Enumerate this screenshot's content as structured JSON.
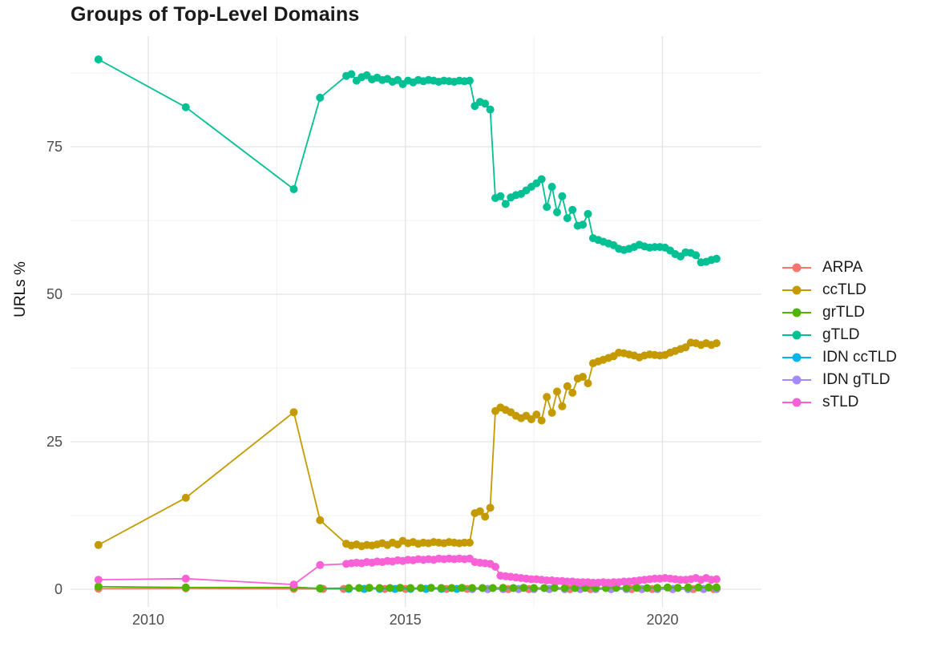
{
  "plot_style": {
    "background": "#ffffff",
    "grid_major_color": "#e3e3e3",
    "grid_minor_color": "#f0f0f0",
    "tick_label_color": "#4d4d4d",
    "title_color": "#1a1a1a"
  },
  "legend": {
    "items": [
      {
        "id": "arpa",
        "label": "ARPA",
        "color": "#F8766D"
      },
      {
        "id": "cctld",
        "label": "ccTLD",
        "color": "#C49A00"
      },
      {
        "id": "grtld",
        "label": "grTLD",
        "color": "#53B400"
      },
      {
        "id": "gtld",
        "label": "gTLD",
        "color": "#00C094"
      },
      {
        "id": "idn-cctld",
        "label": "IDN ccTLD",
        "color": "#00B6EB"
      },
      {
        "id": "idn-gtld",
        "label": "IDN gTLD",
        "color": "#A58AFF"
      },
      {
        "id": "stld",
        "label": "sTLD",
        "color": "#FB61D7"
      }
    ]
  },
  "chart_data": {
    "type": "line",
    "title": "Groups of Top-Level Domains",
    "xlabel": "",
    "ylabel": "URLs %",
    "xlim": [
      2008.5,
      2021.9
    ],
    "ylim": [
      -3,
      93.7
    ],
    "x_ticks": [
      2010,
      2015,
      2020
    ],
    "x_tick_labels": [
      "2010",
      "2015",
      "2020"
    ],
    "x_minor": [
      2012.5,
      2017.5
    ],
    "y_ticks": [
      0,
      25,
      50,
      75
    ],
    "y_tick_labels": [
      "0",
      "25",
      "50",
      "75"
    ],
    "y_minor": [
      12.5,
      37.5,
      62.5,
      87.5
    ],
    "grid": true,
    "legend_position": "right",
    "marker": "point",
    "draw_order": [
      "arpa",
      "idn-cctld",
      "idn-gtld",
      "grtld",
      "gtld",
      "cctld",
      "stld"
    ],
    "series": [
      {
        "id": "arpa",
        "name": "ARPA",
        "color": "#F8766D",
        "x": [
          2009.03,
          2010.73,
          2012.83,
          2013.4,
          2013.8,
          2014.2,
          2014.6,
          2015.0,
          2015.4,
          2015.8,
          2016.2,
          2016.6,
          2017.0,
          2017.4,
          2017.8,
          2018.2,
          2018.6,
          2019.0,
          2019.4,
          2019.8,
          2020.2,
          2020.6,
          2021.0
        ],
        "y": [
          0.1,
          0.15,
          0.07,
          0.05,
          0.05,
          0.05,
          0.05,
          0.05,
          0.05,
          0.05,
          0.05,
          0.03,
          0.03,
          0.03,
          0.03,
          0.03,
          0.03,
          0.03,
          0.03,
          0.03,
          0.03,
          0.03,
          0.03
        ]
      },
      {
        "id": "cctld",
        "name": "ccTLD",
        "color": "#C49A00",
        "x": [
          2009.03,
          2010.73,
          2012.83,
          2013.34,
          2013.85,
          2013.95,
          2014.05,
          2014.15,
          2014.25,
          2014.35,
          2014.45,
          2014.55,
          2014.65,
          2014.75,
          2014.85,
          2014.95,
          2015.05,
          2015.15,
          2015.25,
          2015.35,
          2015.45,
          2015.55,
          2015.65,
          2015.75,
          2015.85,
          2015.95,
          2016.05,
          2016.15,
          2016.25,
          2016.35,
          2016.45,
          2016.55,
          2016.65,
          2016.75,
          2016.85,
          2016.95,
          2017.05,
          2017.15,
          2017.25,
          2017.35,
          2017.45,
          2017.55,
          2017.65,
          2017.75,
          2017.85,
          2017.95,
          2018.05,
          2018.15,
          2018.25,
          2018.35,
          2018.45,
          2018.55,
          2018.65,
          2018.75,
          2018.85,
          2018.95,
          2019.05,
          2019.15,
          2019.25,
          2019.35,
          2019.45,
          2019.55,
          2019.65,
          2019.75,
          2019.85,
          2019.95,
          2020.05,
          2020.15,
          2020.25,
          2020.35,
          2020.45,
          2020.55,
          2020.65,
          2020.75,
          2020.85,
          2020.95,
          2021.05
        ],
        "y": [
          7.5,
          15.5,
          30.0,
          11.7,
          7.7,
          7.4,
          7.6,
          7.3,
          7.5,
          7.4,
          7.6,
          7.8,
          7.5,
          7.9,
          7.6,
          8.2,
          7.8,
          8.0,
          7.7,
          7.9,
          7.8,
          8.0,
          7.9,
          7.8,
          8.0,
          7.9,
          7.8,
          7.9,
          7.9,
          12.9,
          13.2,
          12.3,
          13.8,
          30.2,
          30.8,
          30.4,
          30.0,
          29.4,
          29.0,
          29.4,
          28.8,
          29.6,
          28.6,
          32.6,
          29.9,
          33.5,
          31.0,
          34.4,
          33.3,
          35.7,
          36.0,
          34.9,
          38.3,
          38.6,
          38.9,
          39.2,
          39.5,
          40.1,
          40.0,
          39.8,
          39.6,
          39.3,
          39.6,
          39.8,
          39.7,
          39.6,
          39.7,
          40.1,
          40.4,
          40.7,
          41.0,
          41.8,
          41.7,
          41.4,
          41.7,
          41.4,
          41.7
        ]
      },
      {
        "id": "grtld",
        "name": "grTLD",
        "color": "#53B400",
        "x": [
          2009.03,
          2010.73,
          2012.83,
          2013.34,
          2013.9,
          2014.1,
          2014.3,
          2014.5,
          2014.7,
          2014.9,
          2015.1,
          2015.3,
          2015.5,
          2015.7,
          2015.9,
          2016.1,
          2016.3,
          2016.5,
          2016.7,
          2016.9,
          2017.1,
          2017.3,
          2017.5,
          2017.7,
          2017.9,
          2018.1,
          2018.3,
          2018.5,
          2018.7,
          2018.9,
          2019.1,
          2019.3,
          2019.5,
          2019.7,
          2019.9,
          2020.1,
          2020.3,
          2020.5,
          2020.7,
          2020.9,
          2021.05
        ],
        "y": [
          0.45,
          0.3,
          0.3,
          0.15,
          0.2,
          0.2,
          0.25,
          0.2,
          0.2,
          0.25,
          0.2,
          0.2,
          0.25,
          0.2,
          0.2,
          0.25,
          0.2,
          0.2,
          0.2,
          0.25,
          0.2,
          0.25,
          0.2,
          0.2,
          0.25,
          0.2,
          0.2,
          0.25,
          0.2,
          0.2,
          0.25,
          0.2,
          0.25,
          0.2,
          0.25,
          0.3,
          0.25,
          0.3,
          0.3,
          0.3,
          0.3
        ]
      },
      {
        "id": "gtld",
        "name": "gTLD",
        "color": "#00C094",
        "x": [
          2009.03,
          2010.73,
          2012.83,
          2013.34,
          2013.85,
          2013.95,
          2014.05,
          2014.15,
          2014.25,
          2014.35,
          2014.45,
          2014.55,
          2014.65,
          2014.75,
          2014.85,
          2014.95,
          2015.05,
          2015.15,
          2015.25,
          2015.35,
          2015.45,
          2015.55,
          2015.65,
          2015.75,
          2015.85,
          2015.95,
          2016.05,
          2016.15,
          2016.25,
          2016.35,
          2016.45,
          2016.55,
          2016.65,
          2016.75,
          2016.85,
          2016.95,
          2017.05,
          2017.15,
          2017.25,
          2017.35,
          2017.45,
          2017.55,
          2017.65,
          2017.75,
          2017.85,
          2017.95,
          2018.05,
          2018.15,
          2018.25,
          2018.35,
          2018.45,
          2018.55,
          2018.65,
          2018.75,
          2018.85,
          2018.95,
          2019.05,
          2019.15,
          2019.25,
          2019.35,
          2019.45,
          2019.55,
          2019.65,
          2019.75,
          2019.85,
          2019.95,
          2020.05,
          2020.15,
          2020.25,
          2020.35,
          2020.45,
          2020.55,
          2020.65,
          2020.75,
          2020.85,
          2020.95,
          2021.05
        ],
        "y": [
          89.8,
          81.7,
          67.8,
          83.3,
          87.0,
          87.3,
          86.2,
          86.8,
          87.1,
          86.4,
          86.7,
          86.3,
          86.5,
          86.0,
          86.3,
          85.6,
          86.2,
          85.9,
          86.3,
          86.1,
          86.3,
          86.2,
          86.0,
          86.2,
          86.1,
          86.0,
          86.2,
          86.1,
          86.2,
          81.9,
          82.6,
          82.3,
          81.3,
          66.3,
          66.6,
          65.3,
          66.4,
          66.8,
          67.0,
          67.6,
          68.2,
          68.8,
          69.5,
          64.8,
          68.2,
          63.9,
          66.6,
          62.9,
          64.3,
          61.6,
          61.8,
          63.6,
          59.5,
          59.2,
          58.9,
          58.6,
          58.3,
          57.7,
          57.5,
          57.7,
          58.0,
          58.4,
          58.1,
          57.9,
          58.0,
          58.0,
          57.9,
          57.4,
          56.8,
          56.4,
          57.1,
          57.0,
          56.6,
          55.4,
          55.5,
          55.8,
          56.0
        ]
      },
      {
        "id": "idn-cctld",
        "name": "IDN ccTLD",
        "color": "#00B6EB",
        "x": [
          2012.83,
          2013.34,
          2013.9,
          2014.2,
          2014.5,
          2014.8,
          2015.1,
          2015.4,
          2015.7,
          2016.0,
          2016.3,
          2016.6,
          2016.9,
          2017.2,
          2017.5,
          2017.8,
          2018.1,
          2018.4,
          2018.7,
          2019.0,
          2019.3,
          2019.6,
          2019.9,
          2020.2,
          2020.5,
          2020.8,
          2021.05
        ],
        "y": [
          0.35,
          0.12,
          0.06,
          0.06,
          0.06,
          0.06,
          0.06,
          0.06,
          0.06,
          0.06,
          0.06,
          0.06,
          0.06,
          0.06,
          0.06,
          0.06,
          0.06,
          0.06,
          0.06,
          0.06,
          0.06,
          0.06,
          0.06,
          0.06,
          0.06,
          0.06,
          0.06
        ]
      },
      {
        "id": "idn-gtld",
        "name": "IDN gTLD",
        "color": "#A58AFF",
        "x": [
          2016.3,
          2016.6,
          2016.9,
          2017.2,
          2017.5,
          2017.8,
          2018.1,
          2018.4,
          2018.7,
          2019.0,
          2019.3,
          2019.6,
          2019.9,
          2020.2,
          2020.5,
          2020.8,
          2021.05
        ],
        "y": [
          0.03,
          0.03,
          0.03,
          0.03,
          0.03,
          0.03,
          0.03,
          0.03,
          0.03,
          0.03,
          0.03,
          0.03,
          0.03,
          0.03,
          0.03,
          0.03,
          0.03
        ]
      },
      {
        "id": "stld",
        "name": "sTLD",
        "color": "#FB61D7",
        "x": [
          2009.03,
          2010.73,
          2012.83,
          2013.34,
          2013.85,
          2013.95,
          2014.05,
          2014.15,
          2014.25,
          2014.35,
          2014.45,
          2014.55,
          2014.65,
          2014.75,
          2014.85,
          2014.95,
          2015.05,
          2015.15,
          2015.25,
          2015.35,
          2015.45,
          2015.55,
          2015.65,
          2015.75,
          2015.85,
          2015.95,
          2016.05,
          2016.15,
          2016.25,
          2016.35,
          2016.45,
          2016.55,
          2016.65,
          2016.75,
          2016.85,
          2016.95,
          2017.05,
          2017.15,
          2017.25,
          2017.35,
          2017.45,
          2017.55,
          2017.65,
          2017.75,
          2017.85,
          2017.95,
          2018.05,
          2018.15,
          2018.25,
          2018.35,
          2018.45,
          2018.55,
          2018.65,
          2018.75,
          2018.85,
          2018.95,
          2019.05,
          2019.15,
          2019.25,
          2019.35,
          2019.45,
          2019.55,
          2019.65,
          2019.75,
          2019.85,
          2019.95,
          2020.05,
          2020.15,
          2020.25,
          2020.35,
          2020.45,
          2020.55,
          2020.65,
          2020.75,
          2020.85,
          2020.95,
          2021.05
        ],
        "y": [
          1.6,
          1.8,
          0.8,
          4.1,
          4.3,
          4.4,
          4.5,
          4.4,
          4.6,
          4.5,
          4.7,
          4.6,
          4.8,
          4.7,
          4.9,
          4.8,
          5.0,
          4.9,
          5.1,
          5.0,
          5.1,
          5.0,
          5.2,
          5.1,
          5.2,
          5.1,
          5.2,
          5.1,
          5.2,
          4.6,
          4.5,
          4.4,
          4.3,
          3.8,
          2.3,
          2.2,
          2.1,
          2.0,
          1.9,
          1.8,
          1.7,
          1.7,
          1.6,
          1.5,
          1.5,
          1.4,
          1.4,
          1.3,
          1.3,
          1.2,
          1.2,
          1.2,
          1.1,
          1.1,
          1.2,
          1.1,
          1.2,
          1.2,
          1.3,
          1.3,
          1.4,
          1.5,
          1.6,
          1.7,
          1.8,
          1.8,
          1.9,
          1.8,
          1.7,
          1.6,
          1.6,
          1.7,
          1.9,
          1.6,
          1.9,
          1.6,
          1.7
        ]
      }
    ]
  }
}
